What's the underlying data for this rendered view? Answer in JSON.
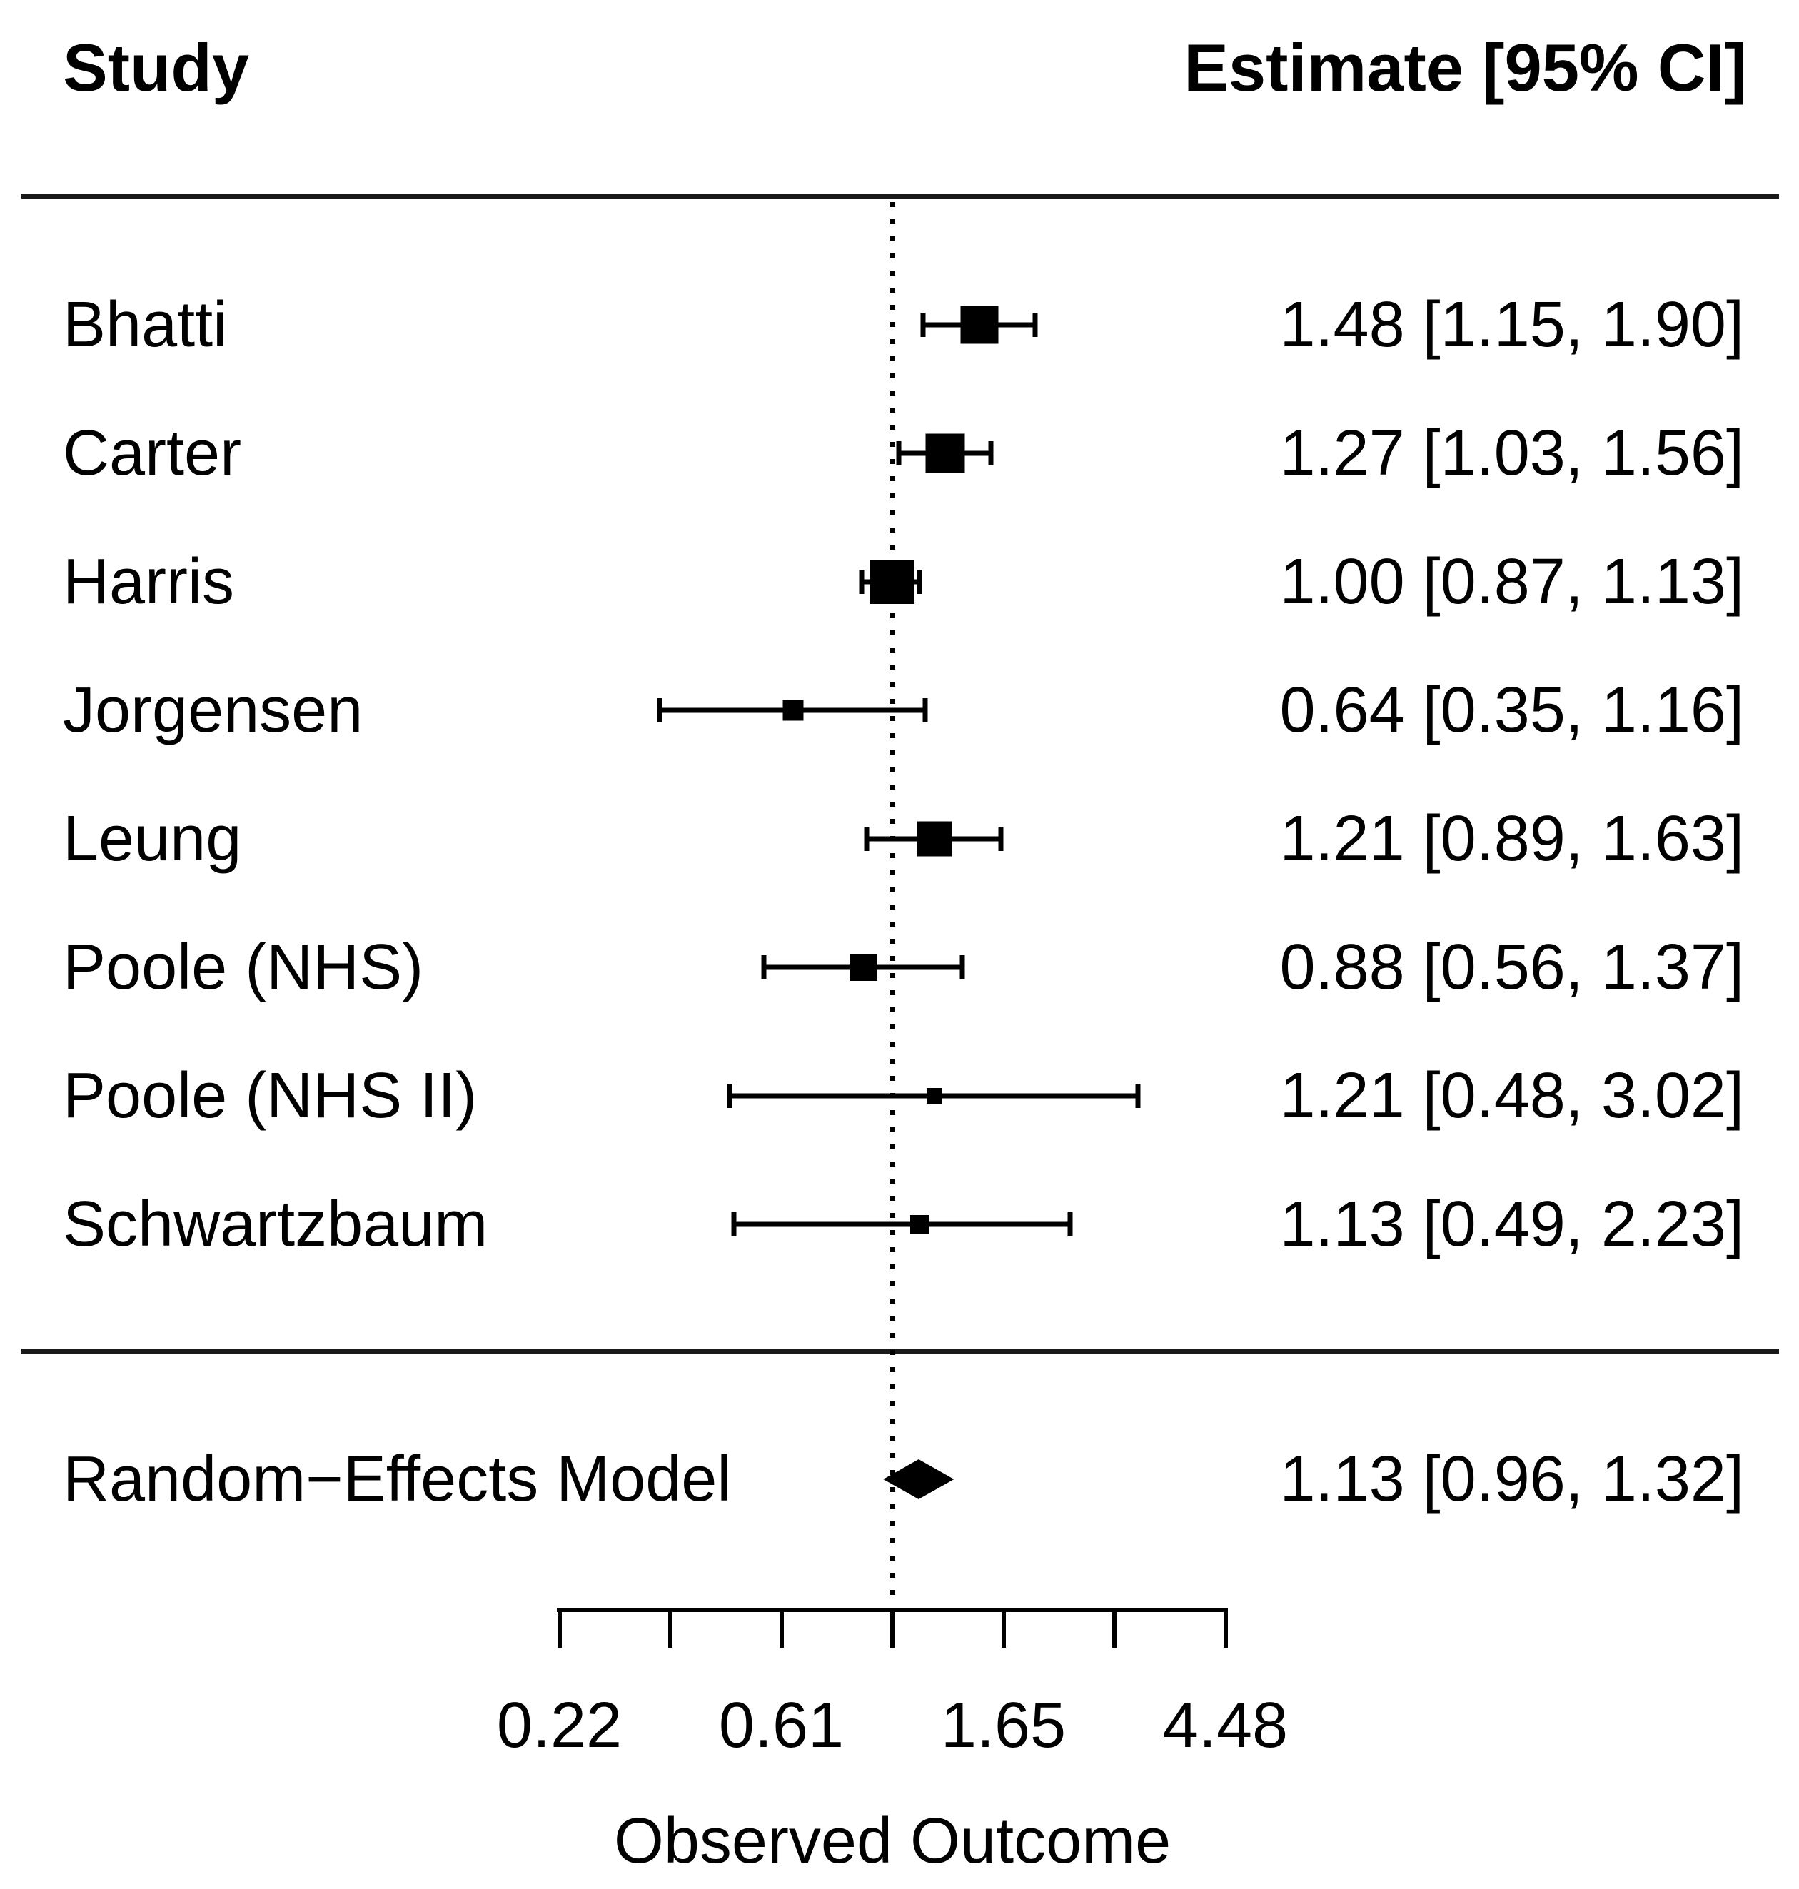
{
  "chart_data": {
    "type": "forest",
    "columns": {
      "study": "Study",
      "estimate": "Estimate [95% CI]"
    },
    "studies": [
      {
        "label": "Bhatti",
        "estimate": 1.48,
        "ci_lower": 1.15,
        "ci_upper": 1.9,
        "display": "1.48 [1.15, 1.90]",
        "marker_size": 53
      },
      {
        "label": "Carter",
        "estimate": 1.27,
        "ci_lower": 1.03,
        "ci_upper": 1.56,
        "display": "1.27 [1.03, 1.56]",
        "marker_size": 55
      },
      {
        "label": "Harris",
        "estimate": 1.0,
        "ci_lower": 0.87,
        "ci_upper": 1.13,
        "display": "1.00 [0.87, 1.13]",
        "marker_size": 62
      },
      {
        "label": "Jorgensen",
        "estimate": 0.64,
        "ci_lower": 0.35,
        "ci_upper": 1.16,
        "display": "0.64 [0.35, 1.16]",
        "marker_size": 29
      },
      {
        "label": "Leung",
        "estimate": 1.21,
        "ci_lower": 0.89,
        "ci_upper": 1.63,
        "display": "1.21 [0.89, 1.63]",
        "marker_size": 49
      },
      {
        "label": "Poole (NHS)",
        "estimate": 0.88,
        "ci_lower": 0.56,
        "ci_upper": 1.37,
        "display": "0.88 [0.56, 1.37]",
        "marker_size": 38
      },
      {
        "label": "Poole (NHS II)",
        "estimate": 1.21,
        "ci_lower": 0.48,
        "ci_upper": 3.02,
        "display": "1.21 [0.48, 3.02]",
        "marker_size": 22
      },
      {
        "label": "Schwartzbaum",
        "estimate": 1.13,
        "ci_lower": 0.49,
        "ci_upper": 2.23,
        "display": "1.13 [0.49, 2.23]",
        "marker_size": 26
      }
    ],
    "summary": {
      "label": "Random−Effects Model",
      "estimate": 1.13,
      "ci_lower": 0.96,
      "ci_upper": 1.32,
      "display": "1.13 [0.96, 1.32]"
    },
    "x_axis": {
      "scale": "log",
      "label": "Observed Outcome",
      "tick_positions_ln": [
        -1.5,
        -1.0,
        -0.5,
        0,
        0.5,
        1.0,
        1.5
      ],
      "labeled_ticks": [
        {
          "ln": -1.5,
          "text": "0.22"
        },
        {
          "ln": -0.5,
          "text": "0.61"
        },
        {
          "ln": 0.5,
          "text": "1.65"
        },
        {
          "ln": 1.5,
          "text": "4.48"
        }
      ],
      "reference_line_at": 1
    },
    "colors": {
      "foreground": "#000000",
      "background": "#ffffff"
    }
  }
}
